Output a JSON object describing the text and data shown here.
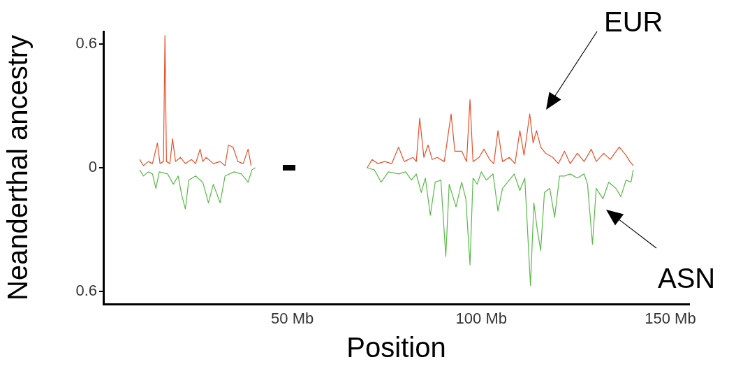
{
  "chart_data": {
    "type": "line",
    "xlabel": "Position",
    "ylabel": "Neanderthal ancestry",
    "xlim": [
      0,
      155
    ],
    "ylim": [
      -0.66,
      0.66
    ],
    "xticks": [
      {
        "value": 50,
        "label": "50 Mb"
      },
      {
        "value": 100,
        "label": "100 Mb"
      },
      {
        "value": 150,
        "label": "150 Mb"
      }
    ],
    "yticks": [
      {
        "value": -0.6,
        "label": "0.6"
      },
      0,
      {
        "value": 0.6,
        "label": "0.6"
      }
    ],
    "grid": false,
    "legend": false,
    "marker": "none",
    "line_style": "solid",
    "series": [
      {
        "color": "#e8502a",
        "x": [
          9.6,
          10.6,
          11.9,
          13.0,
          14.3,
          15.0,
          15.9,
          16.3,
          16.7,
          17.6,
          18.3,
          19.1,
          20.4,
          21.7,
          23.3,
          24.4,
          25.6,
          26.3,
          27.2,
          29.1,
          30.9,
          32.2,
          33.1,
          34.3,
          35.6,
          37.0,
          38.3,
          39.1,
          55,
          69.8,
          71.1,
          72.6,
          74.4,
          76.3,
          78.1,
          79.6,
          81.9,
          82.8,
          83.7,
          84.8,
          85.9,
          87.0,
          88.3,
          90.2,
          92.0,
          93.0,
          94.8,
          96.1,
          97.0,
          97.8,
          99.4,
          100.7,
          102.2,
          103.3,
          104.4,
          105.6,
          107.4,
          108.9,
          110.2,
          111.3,
          112.8,
          113.7,
          114.6,
          115.7,
          117.0,
          118.9,
          120.4,
          122.0,
          123.5,
          125.4,
          127.2,
          129.1,
          130.4,
          132.4,
          134.1,
          136.5,
          138.3,
          139.3,
          140.2
        ],
        "values": [
          0.04,
          0.01,
          0.03,
          0.02,
          0.12,
          0.02,
          0.03,
          0.64,
          0.03,
          0.02,
          0.14,
          0.03,
          0.05,
          0.02,
          0.04,
          0.02,
          0.09,
          0.03,
          0.05,
          0.02,
          0.03,
          0.01,
          0.11,
          0.1,
          0.03,
          0.02,
          0.09,
          0.01,
          null,
          0.0,
          0.04,
          0.02,
          0.03,
          0.02,
          0.1,
          0.03,
          0.05,
          0.03,
          0.24,
          0.05,
          0.11,
          0.04,
          0.05,
          0.03,
          0.26,
          0.08,
          0.08,
          0.03,
          0.33,
          0.03,
          0.05,
          0.09,
          0.04,
          0.02,
          0.18,
          0.03,
          0.05,
          0.02,
          0.18,
          0.06,
          0.26,
          0.12,
          0.18,
          0.1,
          0.07,
          0.05,
          0.02,
          0.08,
          0.02,
          0.07,
          0.03,
          0.09,
          0.03,
          0.07,
          0.04,
          0.1,
          0.06,
          0.03,
          0.01
        ]
      },
      {
        "color": "#5ab94a",
        "x": [
          9.6,
          10.6,
          11.9,
          13.0,
          13.9,
          14.8,
          17.0,
          18.5,
          19.8,
          20.7,
          21.7,
          22.6,
          24.4,
          26.3,
          27.8,
          29.1,
          30.9,
          32.2,
          34.6,
          36.5,
          38.3,
          39.3,
          40.2,
          55,
          69.8,
          71.7,
          73.5,
          75.4,
          78.1,
          80.0,
          81.5,
          82.8,
          84.1,
          85.2,
          86.5,
          87.8,
          89.3,
          90.6,
          91.5,
          93.3,
          94.8,
          95.9,
          97.0,
          97.8,
          98.9,
          100.0,
          101.3,
          103.1,
          104.4,
          105.6,
          107.4,
          108.7,
          110.2,
          111.5,
          113.0,
          113.9,
          114.8,
          115.7,
          116.7,
          118.1,
          119.4,
          120.7,
          122.0,
          123.5,
          125.4,
          127.2,
          128.1,
          129.4,
          130.4,
          132.2,
          133.7,
          135.6,
          136.9,
          138.3,
          139.6,
          140.2
        ],
        "values": [
          -0.01,
          -0.04,
          -0.02,
          -0.03,
          -0.1,
          -0.02,
          -0.03,
          -0.08,
          -0.04,
          -0.13,
          -0.2,
          -0.06,
          -0.04,
          -0.07,
          -0.17,
          -0.08,
          -0.17,
          -0.04,
          -0.02,
          -0.03,
          -0.07,
          -0.01,
          0,
          null,
          0.0,
          -0.01,
          -0.07,
          -0.02,
          -0.03,
          -0.02,
          -0.06,
          -0.03,
          -0.12,
          -0.05,
          -0.23,
          -0.07,
          -0.06,
          -0.43,
          -0.08,
          -0.19,
          -0.07,
          -0.15,
          -0.47,
          -0.05,
          -0.08,
          -0.02,
          -0.06,
          -0.03,
          -0.21,
          -0.1,
          -0.06,
          -0.03,
          -0.11,
          -0.05,
          -0.57,
          -0.17,
          -0.3,
          -0.4,
          -0.12,
          -0.1,
          -0.24,
          -0.04,
          -0.04,
          -0.03,
          -0.05,
          -0.03,
          -0.08,
          -0.37,
          -0.1,
          -0.15,
          -0.07,
          -0.1,
          -0.14,
          -0.06,
          -0.07,
          -0.01
        ]
      }
    ],
    "annotations": [
      "EUR",
      "ASN"
    ]
  }
}
